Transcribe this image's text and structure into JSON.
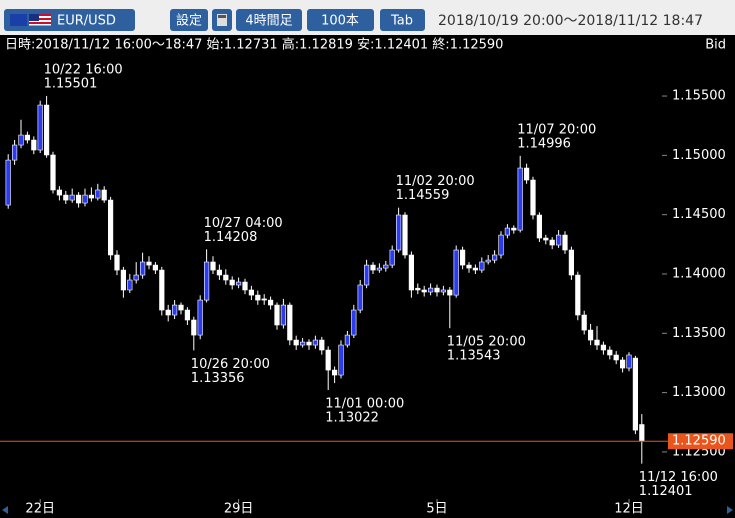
{
  "toolbar": {
    "symbol": "EUR/USD",
    "buttons": [
      "設定",
      "4時間足",
      "100本",
      "Tab"
    ],
    "range": "2018/10/19 20:00～2018/11/12 18:47"
  },
  "info": {
    "text": "日時:2018/11/12 16:00～18:47 始:1.12731 高:1.12819 安:1.12401 終:1.12590",
    "side": "Bid"
  },
  "chart_data": {
    "type": "candlestick",
    "up_color": "#2b3cf0",
    "down_color": "#ffffff",
    "wick_color": "#ffffff",
    "ylim": [
      1.1212,
      1.15846
    ],
    "yticks": [
      {
        "value": 1.155,
        "label": "1.15500"
      },
      {
        "value": 1.15,
        "label": "1.15000"
      },
      {
        "value": 1.145,
        "label": "1.14500"
      },
      {
        "value": 1.14,
        "label": "1.14000"
      },
      {
        "value": 1.135,
        "label": "1.13500"
      },
      {
        "value": 1.13,
        "label": "1.13000"
      },
      {
        "value": 1.125,
        "label": "1.12500"
      }
    ],
    "last": {
      "value": 1.1259,
      "label": "1.12590",
      "color": "#e8561e"
    },
    "categories": [
      null,
      null,
      null,
      null,
      null,
      "22日",
      null,
      null,
      null,
      null,
      null,
      null,
      null,
      null,
      null,
      null,
      null,
      null,
      null,
      null,
      null,
      null,
      null,
      null,
      null,
      null,
      null,
      null,
      null,
      null,
      null,
      null,
      null,
      null,
      null,
      null,
      "29日",
      null,
      null,
      null,
      null,
      null,
      null,
      null,
      null,
      null,
      null,
      null,
      null,
      null,
      null,
      null,
      null,
      null,
      null,
      null,
      null,
      null,
      null,
      null,
      null,
      null,
      null,
      null,
      null,
      null,
      null,
      "5日",
      null,
      null,
      null,
      null,
      null,
      null,
      null,
      null,
      null,
      null,
      null,
      null,
      null,
      null,
      null,
      null,
      null,
      null,
      null,
      null,
      null,
      null,
      null,
      null,
      null,
      null,
      null,
      null,
      null,
      "12日",
      null,
      null
    ],
    "ohlc": [
      [
        1.14581,
        1.1501,
        1.1455,
        1.1496
      ],
      [
        1.1496,
        1.1513,
        1.1492,
        1.15087
      ],
      [
        1.15087,
        1.153,
        1.1506,
        1.15171
      ],
      [
        1.15171,
        1.152,
        1.151,
        1.15129
      ],
      [
        1.15129,
        1.1516,
        1.1501,
        1.15045
      ],
      [
        1.15045,
        1.1546,
        1.1502,
        1.15424
      ],
      [
        1.15424,
        1.15501,
        1.1498,
        1.15003
      ],
      [
        1.15003,
        1.1503,
        1.1468,
        1.14708
      ],
      [
        1.14708,
        1.1474,
        1.1462,
        1.14665
      ],
      [
        1.14665,
        1.147,
        1.1459,
        1.14623
      ],
      [
        1.14623,
        1.1472,
        1.146,
        1.14665
      ],
      [
        1.14665,
        1.1469,
        1.1456,
        1.14598
      ],
      [
        1.14598,
        1.1472,
        1.1457,
        1.14665
      ],
      [
        1.14665,
        1.1473,
        1.1461,
        1.1464
      ],
      [
        1.1464,
        1.1476,
        1.1462,
        1.14708
      ],
      [
        1.14708,
        1.1474,
        1.146,
        1.14623
      ],
      [
        1.14623,
        1.1465,
        1.1412,
        1.1416
      ],
      [
        1.1416,
        1.142,
        1.1399,
        1.14033
      ],
      [
        1.14033,
        1.1406,
        1.138,
        1.13865
      ],
      [
        1.13865,
        1.14,
        1.1384,
        1.13949
      ],
      [
        1.13949,
        1.141,
        1.1392,
        1.13991
      ],
      [
        1.13991,
        1.1418,
        1.1396,
        1.14101
      ],
      [
        1.14101,
        1.1415,
        1.1404,
        1.14075
      ],
      [
        1.14075,
        1.141,
        1.14,
        1.14033
      ],
      [
        1.14033,
        1.1406,
        1.1365,
        1.13696
      ],
      [
        1.13696,
        1.1374,
        1.136,
        1.13654
      ],
      [
        1.13654,
        1.1378,
        1.1362,
        1.13738
      ],
      [
        1.13738,
        1.1376,
        1.1366,
        1.13696
      ],
      [
        1.13696,
        1.1372,
        1.1357,
        1.13612
      ],
      [
        1.13612,
        1.1364,
        1.13356,
        1.13485
      ],
      [
        1.13485,
        1.1382,
        1.1345,
        1.1378
      ],
      [
        1.1378,
        1.14208,
        1.1376,
        1.14101
      ],
      [
        1.14101,
        1.1415,
        1.14,
        1.14033
      ],
      [
        1.14033,
        1.1408,
        1.1395,
        1.13991
      ],
      [
        1.13991,
        1.1404,
        1.1391,
        1.13949
      ],
      [
        1.13949,
        1.1398,
        1.1387,
        1.13907
      ],
      [
        1.13907,
        1.1397,
        1.1388,
        1.13932
      ],
      [
        1.13932,
        1.1396,
        1.1383,
        1.13865
      ],
      [
        1.13865,
        1.139,
        1.1378,
        1.13822
      ],
      [
        1.13822,
        1.1386,
        1.1374,
        1.1378
      ],
      [
        1.1379,
        1.1383,
        1.1374,
        1.1378
      ],
      [
        1.1378,
        1.1381,
        1.137,
        1.13738
      ],
      [
        1.13738,
        1.1376,
        1.1353,
        1.1357
      ],
      [
        1.1357,
        1.1379,
        1.1354,
        1.13738
      ],
      [
        1.13738,
        1.1376,
        1.134,
        1.13443
      ],
      [
        1.13443,
        1.1348,
        1.1336,
        1.13401
      ],
      [
        1.13401,
        1.1346,
        1.1338,
        1.13426
      ],
      [
        1.13426,
        1.1345,
        1.1336,
        1.13401
      ],
      [
        1.13401,
        1.1348,
        1.1337,
        1.13443
      ],
      [
        1.13443,
        1.1347,
        1.1332,
        1.13359
      ],
      [
        1.13359,
        1.1339,
        1.13022,
        1.1319
      ],
      [
        1.1319,
        1.1322,
        1.1308,
        1.13148
      ],
      [
        1.13148,
        1.1344,
        1.1312,
        1.13401
      ],
      [
        1.13401,
        1.1352,
        1.1338,
        1.13485
      ],
      [
        1.13485,
        1.1374,
        1.1346,
        1.13696
      ],
      [
        1.13696,
        1.1395,
        1.1367,
        1.13907
      ],
      [
        1.13907,
        1.1412,
        1.1388,
        1.14075
      ],
      [
        1.14075,
        1.141,
        1.14,
        1.14033
      ],
      [
        1.14033,
        1.1409,
        1.1401,
        1.1405
      ],
      [
        1.1405,
        1.1411,
        1.1402,
        1.14075
      ],
      [
        1.14075,
        1.1424,
        1.1405,
        1.14202
      ],
      [
        1.14202,
        1.14559,
        1.1418,
        1.14497
      ],
      [
        1.14497,
        1.1452,
        1.1413,
        1.1416
      ],
      [
        1.1416,
        1.1419,
        1.138,
        1.13865
      ],
      [
        1.1388,
        1.1392,
        1.1383,
        1.13865
      ],
      [
        1.13865,
        1.139,
        1.1381,
        1.13848
      ],
      [
        1.13848,
        1.1392,
        1.1382,
        1.13881
      ],
      [
        1.13881,
        1.1391,
        1.1381,
        1.13848
      ],
      [
        1.13848,
        1.139,
        1.1382,
        1.13865
      ],
      [
        1.13865,
        1.1389,
        1.13543,
        1.13822
      ],
      [
        1.13822,
        1.1424,
        1.138,
        1.14202
      ],
      [
        1.14202,
        1.1423,
        1.1404,
        1.14075
      ],
      [
        1.14075,
        1.141,
        1.1401,
        1.1405
      ],
      [
        1.1405,
        1.1408,
        1.14,
        1.14033
      ],
      [
        1.14033,
        1.1414,
        1.1401,
        1.14101
      ],
      [
        1.14101,
        1.1416,
        1.1408,
        1.14117
      ],
      [
        1.14117,
        1.142,
        1.1409,
        1.1416
      ],
      [
        1.1416,
        1.1436,
        1.1413,
        1.14328
      ],
      [
        1.14328,
        1.1442,
        1.143,
        1.14387
      ],
      [
        1.14387,
        1.1441,
        1.1434,
        1.1437
      ],
      [
        1.1437,
        1.14996,
        1.1435,
        1.14893
      ],
      [
        1.14893,
        1.1493,
        1.1476,
        1.14792
      ],
      [
        1.14792,
        1.1482,
        1.1446,
        1.14497
      ],
      [
        1.14497,
        1.1452,
        1.1427,
        1.14303
      ],
      [
        1.14303,
        1.1433,
        1.1425,
        1.14286
      ],
      [
        1.14286,
        1.1431,
        1.1421,
        1.14244
      ],
      [
        1.14244,
        1.1437,
        1.1422,
        1.14328
      ],
      [
        1.14328,
        1.1436,
        1.1417,
        1.14202
      ],
      [
        1.14202,
        1.1423,
        1.1395,
        1.13991
      ],
      [
        1.13991,
        1.1402,
        1.1361,
        1.13654
      ],
      [
        1.13654,
        1.1369,
        1.1349,
        1.13527
      ],
      [
        1.13527,
        1.1358,
        1.134,
        1.13443
      ],
      [
        1.13443,
        1.1356,
        1.1336,
        1.13401
      ],
      [
        1.13401,
        1.1343,
        1.1332,
        1.13359
      ],
      [
        1.13359,
        1.1339,
        1.1328,
        1.13317
      ],
      [
        1.13317,
        1.1335,
        1.1324,
        1.13275
      ],
      [
        1.13275,
        1.133,
        1.1317,
        1.13207
      ],
      [
        1.13207,
        1.1334,
        1.1318,
        1.13317
      ],
      [
        1.13291,
        1.1331,
        1.1265,
        1.12684
      ],
      [
        1.12731,
        1.12819,
        1.12401,
        1.1259
      ]
    ],
    "annotations": [
      {
        "time": "10/22 16:00",
        "value": 1.15501
      },
      {
        "time": "10/27 04:00",
        "value": 1.14208
      },
      {
        "time": "10/26 20:00",
        "value": 1.13356
      },
      {
        "time": "11/01 00:00",
        "value": 1.13022
      },
      {
        "time": "11/02 20:00",
        "value": 1.14559
      },
      {
        "time": "11/05 20:00",
        "value": 1.13543
      },
      {
        "time": "11/07 20:00",
        "value": 1.14996
      },
      {
        "time": "11/12 16:00",
        "value": 1.12401
      }
    ]
  }
}
